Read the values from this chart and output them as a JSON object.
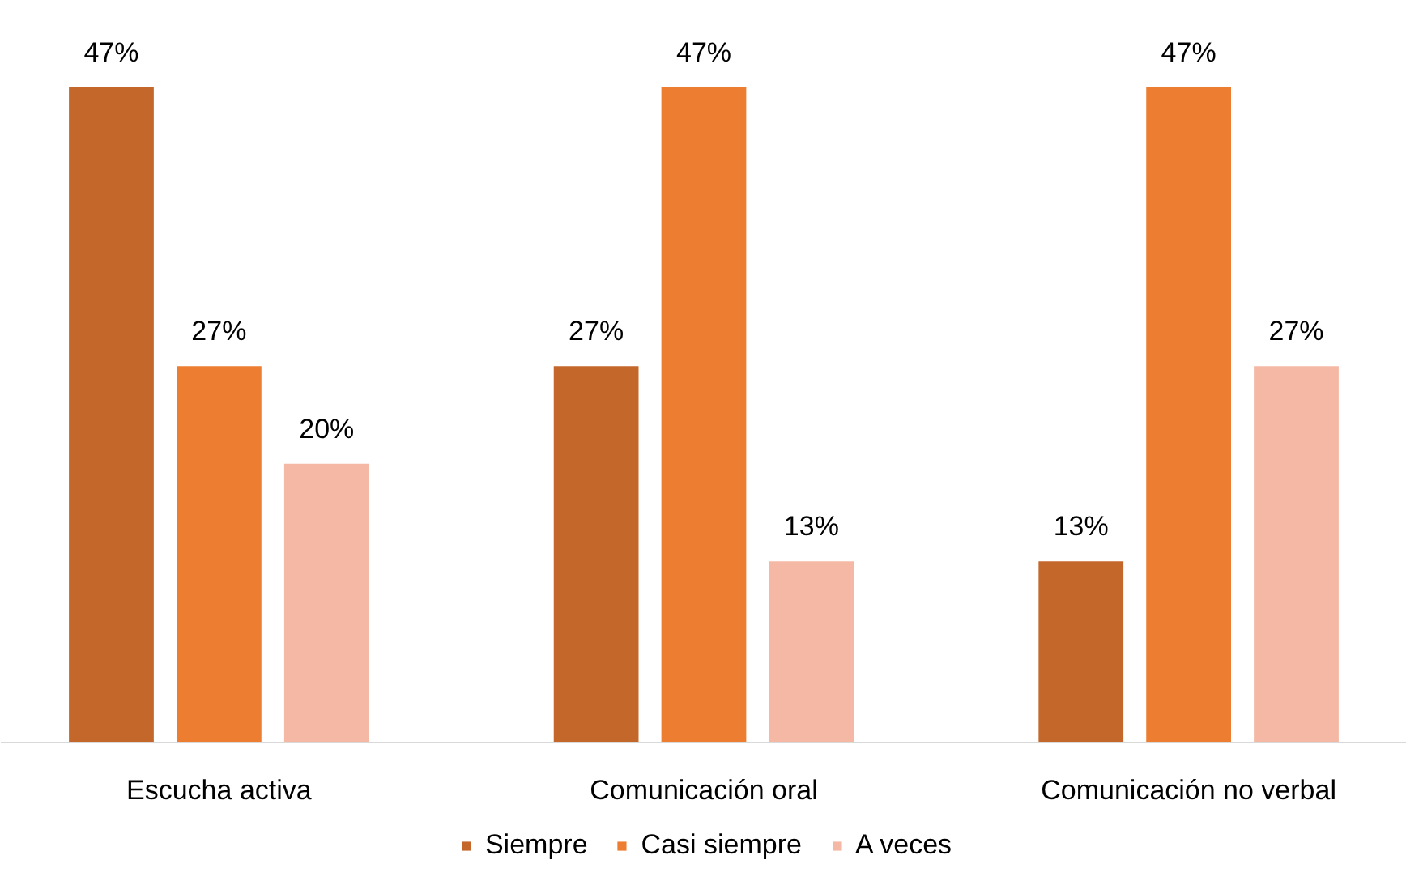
{
  "chart_data": {
    "type": "bar",
    "categories": [
      "Escucha activa",
      "Comunicación oral",
      "Comunicación no verbal"
    ],
    "series": [
      {
        "name": "Siempre",
        "color": "#c4672b",
        "values": [
          47,
          27,
          13
        ],
        "value_labels": [
          "47%",
          "27%",
          "13%"
        ]
      },
      {
        "name": "Casi siempre",
        "color": "#ed7d31",
        "values": [
          27,
          47,
          47
        ],
        "value_labels": [
          "27%",
          "47%",
          "47%"
        ]
      },
      {
        "name": "A veces",
        "color": "#f4b8a5",
        "values": [
          20,
          13,
          27
        ],
        "value_labels": [
          "20%",
          "13%",
          "27%"
        ]
      }
    ],
    "legend": "bottom"
  }
}
